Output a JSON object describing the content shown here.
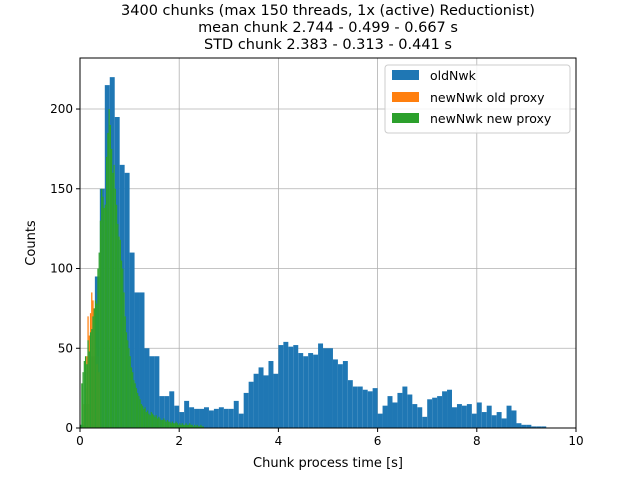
{
  "chart_data": {
    "type": "bar",
    "title_lines": [
      "3400 chunks (max 150 threads, 1x (active) Reductionist)",
      "mean chunk 2.744 - 0.499 - 0.667 s",
      "STD chunk 2.383 - 0.313 - 0.441 s"
    ],
    "xlabel": "Chunk process time [s]",
    "ylabel": "Counts",
    "xlim": [
      0,
      10
    ],
    "ylim": [
      0,
      232
    ],
    "xticks": [
      0,
      2,
      4,
      6,
      8,
      10
    ],
    "xtick_labels": [
      "0",
      "2",
      "4",
      "6",
      "8",
      "10"
    ],
    "yticks": [
      0,
      50,
      100,
      150,
      200
    ],
    "ytick_labels": [
      "0",
      "50",
      "100",
      "150",
      "200"
    ],
    "grid": true,
    "legend_position": "top-right",
    "series": [
      {
        "name": "oldNwk",
        "color": "#1f77b4",
        "bin_width": 0.1,
        "bin_starts": [
          0.0,
          0.1,
          0.2,
          0.3,
          0.4,
          0.5,
          0.6,
          0.7,
          0.8,
          0.9,
          1.0,
          1.1,
          1.2,
          1.3,
          1.4,
          1.5,
          1.6,
          1.7,
          1.8,
          1.9,
          2.0,
          2.1,
          2.2,
          2.3,
          2.4,
          2.5,
          2.6,
          2.7,
          2.8,
          2.9,
          3.0,
          3.1,
          3.2,
          3.3,
          3.4,
          3.5,
          3.6,
          3.7,
          3.8,
          3.9,
          4.0,
          4.1,
          4.2,
          4.3,
          4.4,
          4.5,
          4.6,
          4.7,
          4.8,
          4.9,
          5.0,
          5.1,
          5.2,
          5.3,
          5.4,
          5.5,
          5.6,
          5.7,
          5.8,
          5.9,
          6.0,
          6.1,
          6.2,
          6.3,
          6.4,
          6.5,
          6.6,
          6.7,
          6.8,
          6.9,
          7.0,
          7.1,
          7.2,
          7.3,
          7.4,
          7.5,
          7.6,
          7.7,
          7.8,
          7.9,
          8.0,
          8.1,
          8.2,
          8.3,
          8.4,
          8.5,
          8.6,
          8.7,
          8.8,
          8.9,
          9.0,
          9.1,
          9.2,
          9.3
        ],
        "values": [
          2,
          15,
          45,
          95,
          150,
          215,
          220,
          195,
          165,
          160,
          110,
          85,
          85,
          50,
          45,
          45,
          20,
          20,
          23,
          14,
          10,
          17,
          13,
          12,
          12,
          13,
          11,
          12,
          13,
          12,
          12,
          17,
          9,
          22,
          29,
          34,
          38,
          33,
          42,
          34,
          52,
          54,
          51,
          52,
          47,
          45,
          47,
          46,
          53,
          50,
          50,
          43,
          40,
          42,
          30,
          26,
          26,
          24,
          23,
          25,
          9,
          14,
          20,
          16,
          22,
          26,
          21,
          15,
          13,
          7,
          18,
          19,
          20,
          23,
          24,
          13,
          15,
          14,
          15,
          9,
          16,
          10,
          14,
          8,
          10,
          6,
          14,
          11,
          3,
          2,
          2,
          1,
          1,
          1
        ]
      },
      {
        "name": "newNwk old proxy",
        "color": "#ff7f0e",
        "bin_width": 0.025,
        "bin_starts": [
          0.05,
          0.075,
          0.1,
          0.125,
          0.15,
          0.175,
          0.2,
          0.225,
          0.25,
          0.275,
          0.3,
          0.325,
          0.35,
          0.375,
          0.4
        ],
        "values": [
          4,
          15,
          25,
          45,
          70,
          58,
          72,
          85,
          80,
          75,
          50,
          40,
          45,
          35,
          25
        ]
      },
      {
        "name": "newNwk new proxy",
        "color": "#2ca02c",
        "bin_width": 0.025,
        "bin_starts": [
          0.0,
          0.025,
          0.05,
          0.075,
          0.1,
          0.125,
          0.15,
          0.175,
          0.2,
          0.225,
          0.25,
          0.275,
          0.3,
          0.325,
          0.35,
          0.375,
          0.4,
          0.425,
          0.45,
          0.475,
          0.5,
          0.525,
          0.55,
          0.575,
          0.6,
          0.625,
          0.65,
          0.675,
          0.7,
          0.725,
          0.75,
          0.775,
          0.8,
          0.825,
          0.85,
          0.875,
          0.9,
          0.925,
          0.95,
          0.975,
          1.0,
          1.025,
          1.05,
          1.075,
          1.1,
          1.125,
          1.15,
          1.175,
          1.2,
          1.225,
          1.25,
          1.275,
          1.3,
          1.325,
          1.35,
          1.375,
          1.4,
          1.425,
          1.45,
          1.475,
          1.5,
          1.525,
          1.55,
          1.575,
          1.6,
          1.625,
          1.65,
          1.675,
          1.7,
          1.725,
          1.75,
          1.775,
          1.8,
          1.825,
          1.85,
          1.875,
          1.9,
          1.925,
          1.95,
          1.975,
          2.0,
          2.025,
          2.05,
          2.075,
          2.1,
          2.125,
          2.15,
          2.175,
          2.2,
          2.225,
          2.25,
          2.275,
          2.3,
          2.325,
          2.35,
          2.375,
          2.4,
          2.425,
          2.45,
          2.475
        ],
        "values": [
          2,
          28,
          35,
          42,
          45,
          40,
          55,
          48,
          60,
          62,
          70,
          75,
          80,
          78,
          100,
          110,
          130,
          150,
          145,
          138,
          140,
          170,
          185,
          200,
          190,
          175,
          160,
          165,
          150,
          140,
          128,
          120,
          118,
          105,
          100,
          85,
          70,
          60,
          55,
          50,
          45,
          38,
          35,
          30,
          28,
          25,
          22,
          20,
          18,
          15,
          14,
          12,
          13,
          10,
          11,
          9,
          8,
          10,
          9,
          8,
          7,
          8,
          6,
          7,
          6,
          5,
          5,
          6,
          5,
          4,
          5,
          4,
          4,
          3,
          4,
          3,
          3,
          4,
          3,
          2,
          3,
          2,
          3,
          2,
          2,
          3,
          2,
          2,
          3,
          2,
          2,
          1,
          2,
          1,
          2,
          1,
          1,
          2,
          1,
          1
        ]
      }
    ]
  }
}
